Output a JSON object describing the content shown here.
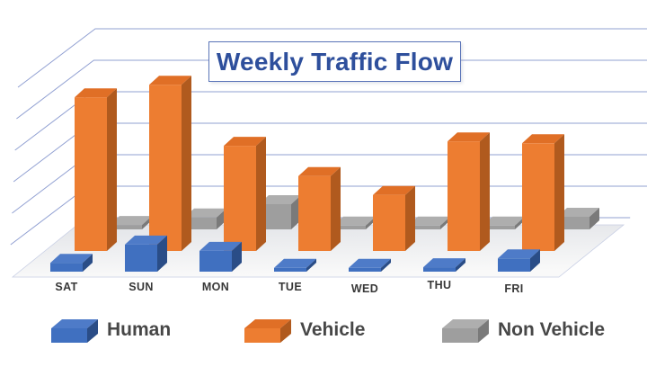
{
  "chart_data": {
    "type": "bar",
    "subtype": "3d-column",
    "title": "Weekly Traffic Flow",
    "categories": [
      "SAT",
      "SUN",
      "MON",
      "TUE",
      "WED",
      "THU",
      "FRI"
    ],
    "series": [
      {
        "name": "Human",
        "values": [
          14,
          43,
          33,
          6,
          6,
          7,
          21
        ],
        "colors": {
          "front": "#4070c0",
          "top": "#4e7bc8",
          "side": "#2a4d87"
        }
      },
      {
        "name": "Vehicle",
        "values": [
          244,
          264,
          167,
          119,
          89,
          174,
          171
        ],
        "colors": {
          "front": "#ed7d31",
          "top": "#e06f26",
          "side": "#b05a1e"
        }
      },
      {
        "name": "Non Vehicle",
        "values": [
          7,
          19,
          40,
          6,
          6,
          6,
          20
        ],
        "colors": {
          "front": "#9e9e9e",
          "top": "#aeaeae",
          "side": "#7a7a7a"
        }
      }
    ],
    "value_axis_labels_visible": false,
    "gridlines": true,
    "gridline_count": 7,
    "legend_position": "bottom",
    "colors": {
      "grid": "#91a0d2",
      "floor_back": "#e2e4e8",
      "floor_front": "#f9f9f9",
      "title_text": "#2e4f9c",
      "title_border": "#5a74b8",
      "category_label": "#383838",
      "legend_text": "#474747",
      "background": "#ffffff"
    }
  }
}
